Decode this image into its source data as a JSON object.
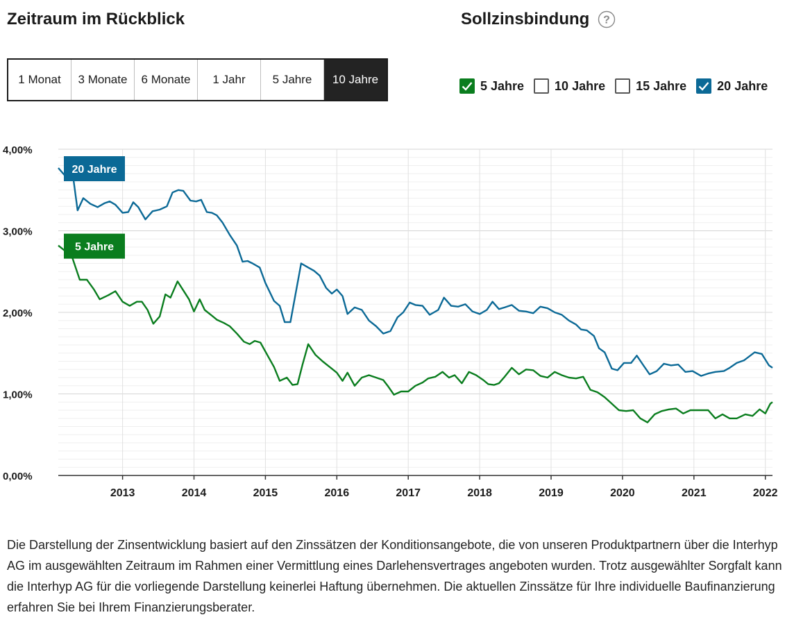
{
  "header": {
    "period_title": "Zeitraum im Rückblick",
    "fixation_title": "Sollzinsbindung"
  },
  "period_tabs": [
    "1 Monat",
    "3 Monate",
    "6 Monate",
    "1 Jahr",
    "5 Jahre",
    "10 Jahre"
  ],
  "period_active": "10 Jahre",
  "fixation_options": [
    {
      "label": "5 Jahre",
      "checked": true,
      "color": "#0a7d1e"
    },
    {
      "label": "10 Jahre",
      "checked": false,
      "color": "#555555"
    },
    {
      "label": "15 Jahre",
      "checked": false,
      "color": "#555555"
    },
    {
      "label": "20 Jahre",
      "checked": true,
      "color": "#0b6996"
    }
  ],
  "icons": {
    "help": "question-circle-icon",
    "check": "checkmark-icon"
  },
  "chart_data": {
    "type": "line",
    "x_range": [
      2012.1,
      2022.1
    ],
    "ylim": [
      0,
      4
    ],
    "yticks": [
      "0,00%",
      "1,00%",
      "2,00%",
      "3,00%",
      "4,00%"
    ],
    "xticks": [
      "2013",
      "2014",
      "2015",
      "2016",
      "2017",
      "2018",
      "2019",
      "2020",
      "2021",
      "2022"
    ],
    "grid": true,
    "series": [
      {
        "name": "20 Jahre",
        "color": "#0b6996",
        "x": [
          2012.1,
          2012.2,
          2012.3,
          2012.37,
          2012.45,
          2012.55,
          2012.65,
          2012.75,
          2012.82,
          2012.9,
          2013.0,
          2013.08,
          2013.15,
          2013.22,
          2013.32,
          2013.42,
          2013.52,
          2013.62,
          2013.7,
          2013.78,
          2013.85,
          2013.95,
          2014.03,
          2014.1,
          2014.18,
          2014.25,
          2014.32,
          2014.4,
          2014.5,
          2014.6,
          2014.68,
          2014.75,
          2014.82,
          2014.92,
          2015.0,
          2015.12,
          2015.2,
          2015.27,
          2015.35,
          2015.5,
          2015.6,
          2015.68,
          2015.76,
          2015.85,
          2015.93,
          2016.0,
          2016.08,
          2016.15,
          2016.25,
          2016.35,
          2016.45,
          2016.55,
          2016.65,
          2016.75,
          2016.85,
          2016.93,
          2017.02,
          2017.1,
          2017.2,
          2017.3,
          2017.42,
          2017.5,
          2017.6,
          2017.7,
          2017.8,
          2017.9,
          2018.0,
          2018.1,
          2018.18,
          2018.27,
          2018.35,
          2018.45,
          2018.55,
          2018.65,
          2018.75,
          2018.85,
          2018.95,
          2019.05,
          2019.15,
          2019.25,
          2019.35,
          2019.42,
          2019.5,
          2019.6,
          2019.67,
          2019.75,
          2019.85,
          2019.93,
          2020.02,
          2020.12,
          2020.2,
          2020.3,
          2020.38,
          2020.48,
          2020.58,
          2020.68,
          2020.78,
          2020.88,
          2020.98,
          2021.1,
          2021.2,
          2021.3,
          2021.42,
          2021.5,
          2021.6,
          2021.7,
          2021.85,
          2021.95,
          2022.05,
          2022.1
        ],
        "y": [
          3.77,
          3.67,
          3.71,
          3.25,
          3.4,
          3.33,
          3.29,
          3.34,
          3.36,
          3.32,
          3.22,
          3.23,
          3.35,
          3.29,
          3.14,
          3.24,
          3.26,
          3.3,
          3.47,
          3.5,
          3.49,
          3.37,
          3.36,
          3.38,
          3.23,
          3.22,
          3.19,
          3.1,
          2.95,
          2.82,
          2.62,
          2.63,
          2.6,
          2.55,
          2.36,
          2.14,
          2.08,
          1.88,
          1.88,
          2.6,
          2.55,
          2.51,
          2.45,
          2.3,
          2.23,
          2.28,
          2.2,
          1.98,
          2.06,
          2.03,
          1.9,
          1.83,
          1.74,
          1.77,
          1.94,
          2.0,
          2.12,
          2.09,
          2.08,
          1.97,
          2.03,
          2.18,
          2.08,
          2.07,
          2.1,
          2.01,
          1.98,
          2.03,
          2.13,
          2.04,
          2.06,
          2.09,
          2.02,
          2.01,
          1.99,
          2.07,
          2.05,
          2.0,
          1.97,
          1.9,
          1.85,
          1.79,
          1.78,
          1.71,
          1.56,
          1.51,
          1.31,
          1.29,
          1.38,
          1.38,
          1.47,
          1.34,
          1.24,
          1.28,
          1.37,
          1.35,
          1.36,
          1.27,
          1.28,
          1.22,
          1.25,
          1.27,
          1.28,
          1.32,
          1.38,
          1.41,
          1.51,
          1.49,
          1.35,
          1.32
        ]
      },
      {
        "name": "5 Jahre",
        "color": "#0a7d1e",
        "x": [
          2012.1,
          2012.2,
          2012.3,
          2012.4,
          2012.5,
          2012.6,
          2012.68,
          2012.8,
          2012.9,
          2013.0,
          2013.1,
          2013.2,
          2013.27,
          2013.35,
          2013.43,
          2013.52,
          2013.6,
          2013.67,
          2013.77,
          2013.85,
          2013.93,
          2014.0,
          2014.08,
          2014.15,
          2014.25,
          2014.32,
          2014.42,
          2014.5,
          2014.6,
          2014.7,
          2014.78,
          2014.85,
          2014.93,
          2015.05,
          2015.12,
          2015.2,
          2015.3,
          2015.38,
          2015.45,
          2015.52,
          2015.6,
          2015.7,
          2015.8,
          2015.9,
          2016.0,
          2016.08,
          2016.15,
          2016.25,
          2016.35,
          2016.45,
          2016.55,
          2016.65,
          2016.72,
          2016.8,
          2016.9,
          2017.0,
          2017.1,
          2017.2,
          2017.28,
          2017.38,
          2017.48,
          2017.57,
          2017.65,
          2017.75,
          2017.85,
          2017.95,
          2018.05,
          2018.12,
          2018.2,
          2018.27,
          2018.35,
          2018.45,
          2018.55,
          2018.65,
          2018.75,
          2018.85,
          2018.95,
          2019.05,
          2019.15,
          2019.25,
          2019.35,
          2019.45,
          2019.55,
          2019.65,
          2019.75,
          2019.85,
          2019.95,
          2020.05,
          2020.15,
          2020.25,
          2020.35,
          2020.45,
          2020.55,
          2020.65,
          2020.75,
          2020.85,
          2020.95,
          2021.05,
          2021.12,
          2021.2,
          2021.3,
          2021.4,
          2021.5,
          2021.6,
          2021.72,
          2021.82,
          2021.92,
          2022.0,
          2022.07,
          2022.1
        ],
        "y": [
          2.82,
          2.75,
          2.66,
          2.4,
          2.4,
          2.28,
          2.16,
          2.21,
          2.26,
          2.13,
          2.08,
          2.13,
          2.13,
          2.03,
          1.86,
          1.95,
          2.22,
          2.18,
          2.38,
          2.27,
          2.16,
          2.01,
          2.16,
          2.03,
          1.96,
          1.91,
          1.87,
          1.83,
          1.74,
          1.64,
          1.61,
          1.65,
          1.63,
          1.44,
          1.33,
          1.16,
          1.2,
          1.11,
          1.12,
          1.36,
          1.61,
          1.48,
          1.4,
          1.33,
          1.26,
          1.16,
          1.26,
          1.1,
          1.2,
          1.23,
          1.2,
          1.17,
          1.09,
          0.99,
          1.03,
          1.03,
          1.1,
          1.14,
          1.19,
          1.21,
          1.27,
          1.2,
          1.23,
          1.13,
          1.27,
          1.23,
          1.17,
          1.12,
          1.11,
          1.13,
          1.21,
          1.32,
          1.24,
          1.3,
          1.29,
          1.22,
          1.2,
          1.27,
          1.23,
          1.2,
          1.19,
          1.21,
          1.05,
          1.02,
          0.96,
          0.88,
          0.8,
          0.79,
          0.8,
          0.7,
          0.65,
          0.75,
          0.79,
          0.81,
          0.82,
          0.76,
          0.8,
          0.8,
          0.8,
          0.8,
          0.7,
          0.75,
          0.7,
          0.7,
          0.75,
          0.73,
          0.81,
          0.76,
          0.88,
          0.9
        ]
      }
    ],
    "labels": [
      {
        "text": "20 Jahre",
        "color": "#0b6996"
      },
      {
        "text": "5 Jahre",
        "color": "#0a7d1e"
      }
    ]
  },
  "disclaimer": "Die Darstellung der Zinsentwicklung basiert auf den Zinssätzen der Konditionsangebote, die von unseren Produktpartnern über die Interhyp AG im ausgewählten Zeitraum im Rahmen einer Vermittlung eines Darlehensvertrages angeboten wurden. Trotz ausgewählter Sorgfalt kann die Interhyp AG für die vorliegende Darstellung keinerlei Haftung übernehmen. Die aktuellen Zinssätze für Ihre individuelle Baufinanzierung erfahren Sie bei Ihrem Finanzierungsberater."
}
